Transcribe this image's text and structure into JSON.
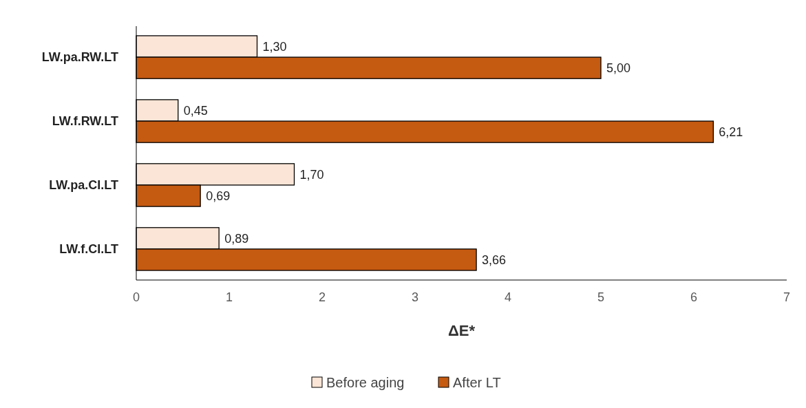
{
  "chart_data": {
    "type": "bar",
    "orientation": "horizontal",
    "xlabel": "ΔE*",
    "categories": [
      "LW.pa.RW.LT",
      "LW.f.RW.LT",
      "LW.pa.CI.LT",
      "LW.f.CI.LT"
    ],
    "series": [
      {
        "name": "Before aging",
        "color": "#fbe5d6",
        "values": [
          1.3,
          0.45,
          1.7,
          0.89
        ],
        "value_labels": [
          "1,30",
          "0,45",
          "1,70",
          "0,89"
        ]
      },
      {
        "name": "After LT",
        "color": "#c55a11",
        "values": [
          5.0,
          6.21,
          0.69,
          3.66
        ],
        "value_labels": [
          "5,00",
          "6,21",
          "0,69",
          "3,66"
        ]
      }
    ],
    "xlim": [
      0,
      7
    ],
    "xticks": [
      0,
      1,
      2,
      3,
      4,
      5,
      6,
      7
    ],
    "grid": false,
    "legend": "bottom"
  }
}
